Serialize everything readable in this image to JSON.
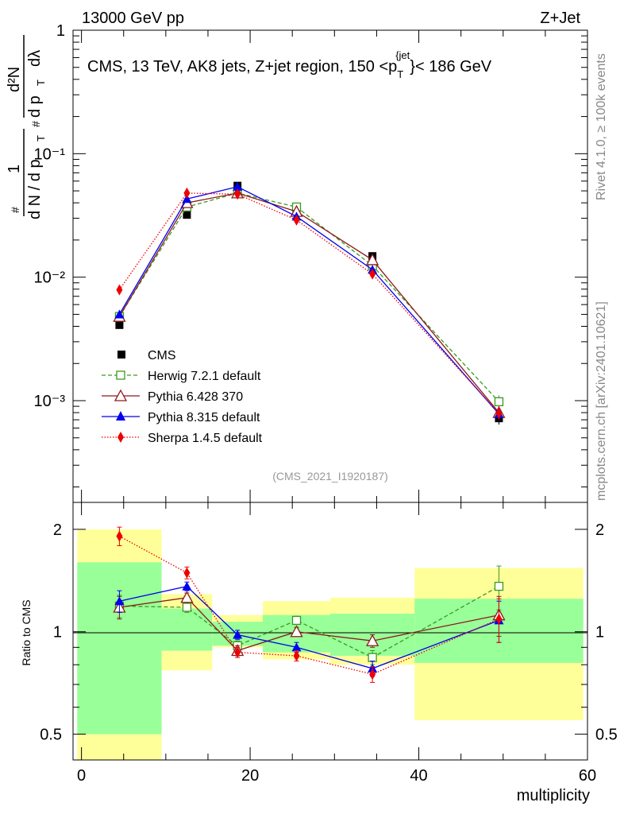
{
  "header": {
    "left": "13000 GeV pp",
    "right": "Z+Jet"
  },
  "side_labels": {
    "rivet": "Rivet 4.1.0, ≥ 100k events",
    "mcplots": "mcplots.cern.ch [arXiv:2401.10621]"
  },
  "analysis_id": "(CMS_2021_I1920187)",
  "colors": {
    "cms": "#000000",
    "herwig": "#3a9a1e",
    "pythia6": "#8b1a1a",
    "pythia8": "#0000ee",
    "sherpa": "#ee0000",
    "band_inner": "#99ff99",
    "band_outer": "#ffff99"
  },
  "chart_data": [
    {
      "type": "line",
      "scale": "log",
      "title": "CMS, 13 TeV, AK8 jets, Z+jet region, 150 <p_T^{jet}< 186 GeV",
      "title_parts": {
        "pre": "CMS, 13 TeV, AK8 jets, Z+jet region, 150 <p",
        "sub": "T",
        "sup": "{jet",
        "post": "}< 186 GeV"
      },
      "ylabel": "1/dN/dp_T  d²N/dp_T dλ",
      "ylabel_parts": {
        "hash": "#",
        "one": "1",
        "dN": "d N / d p",
        "T": "T",
        "d2N": "d²N",
        "dpt": "d p",
        "dlambda": "dλ"
      },
      "ylim": [
        0.00015,
        1.0
      ],
      "y_ticks": [
        {
          "value": 1,
          "label": "1"
        },
        {
          "value": 0.1,
          "label": "10⁻¹"
        },
        {
          "value": 0.01,
          "label": "10⁻²"
        },
        {
          "value": 0.001,
          "label": "10⁻³"
        }
      ],
      "x": [
        4.5,
        12.5,
        18.5,
        25.5,
        34.5,
        49.5
      ],
      "series": [
        {
          "name": "CMS",
          "key": "cms",
          "style": "data",
          "values": [
            0.0041,
            0.032,
            0.055,
            0.034,
            0.0148,
            0.00072
          ]
        },
        {
          "name": "Herwig 7.2.1 default",
          "key": "herwig",
          "style": "dashed",
          "marker": "open-square",
          "values": [
            0.0048,
            0.037,
            0.048,
            0.037,
            0.0124,
            0.00098
          ]
        },
        {
          "name": "Pythia 6.428 370",
          "key": "pythia6",
          "style": "solid",
          "marker": "open-triangle",
          "values": [
            0.0048,
            0.04,
            0.048,
            0.034,
            0.0138,
            0.0008
          ]
        },
        {
          "name": "Pythia 8.315 default",
          "key": "pythia8",
          "style": "solid",
          "marker": "filled-triangle",
          "values": [
            0.005,
            0.043,
            0.054,
            0.031,
            0.0115,
            0.00078
          ]
        },
        {
          "name": "Sherpa 1.4.5 default",
          "key": "sherpa",
          "style": "dotted",
          "marker": "filled-diamond",
          "values": [
            0.0079,
            0.048,
            0.047,
            0.029,
            0.0106,
            0.00079
          ]
        }
      ]
    },
    {
      "type": "line",
      "scale": "log",
      "xlabel": "multiplicity",
      "ylabel": "Ratio to CMS",
      "xlim": [
        -1,
        60
      ],
      "ylim": [
        0.42,
        2.4
      ],
      "x_ticks": [
        0,
        20,
        40,
        60
      ],
      "y_ticks": [
        {
          "value": 0.5,
          "label": "0.5"
        },
        {
          "value": 1,
          "label": "1"
        },
        {
          "value": 2,
          "label": "2"
        }
      ],
      "bands": [
        {
          "x0": -0.5,
          "x1": 9.5,
          "inner": [
            0.5,
            1.6
          ],
          "outer": [
            0.4,
            2.0
          ]
        },
        {
          "x0": 9.5,
          "x1": 15.5,
          "inner": [
            0.88,
            1.17
          ],
          "outer": [
            0.77,
            1.29
          ]
        },
        {
          "x0": 15.5,
          "x1": 21.5,
          "inner": [
            0.91,
            1.07
          ],
          "outer": [
            0.9,
            1.12
          ]
        },
        {
          "x0": 21.5,
          "x1": 29.5,
          "inner": [
            0.87,
            1.12
          ],
          "outer": [
            0.83,
            1.23
          ]
        },
        {
          "x0": 29.5,
          "x1": 39.5,
          "inner": [
            0.85,
            1.13
          ],
          "outer": [
            0.8,
            1.26
          ]
        },
        {
          "x0": 39.5,
          "x1": 59.5,
          "inner": [
            0.81,
            1.25
          ],
          "outer": [
            0.55,
            1.54
          ]
        }
      ],
      "x": [
        4.5,
        12.5,
        18.5,
        25.5,
        34.5,
        49.5
      ],
      "series": [
        {
          "name": "Herwig 7.2.1 default",
          "key": "herwig",
          "style": "dashed",
          "marker": "open-square",
          "values": [
            1.19,
            1.18,
            0.91,
            1.08,
            0.84,
            1.36
          ],
          "err": [
            0.09,
            0.04,
            0.03,
            0.03,
            0.04,
            0.2
          ]
        },
        {
          "name": "Pythia 6.428 370",
          "key": "pythia6",
          "style": "solid",
          "marker": "open-triangle",
          "values": [
            1.18,
            1.26,
            0.88,
            1.0,
            0.94,
            1.12
          ],
          "err": [
            0.09,
            0.04,
            0.03,
            0.03,
            0.04,
            0.15
          ]
        },
        {
          "name": "Pythia 8.315 default",
          "key": "pythia8",
          "style": "solid",
          "marker": "filled-triangle",
          "values": [
            1.23,
            1.36,
            0.98,
            0.9,
            0.78,
            1.08
          ],
          "err": [
            0.09,
            0.04,
            0.03,
            0.03,
            0.04,
            0.15
          ]
        },
        {
          "name": "Sherpa 1.4.5 default",
          "key": "sherpa",
          "style": "dotted",
          "marker": "filled-diamond",
          "values": [
            1.91,
            1.49,
            0.87,
            0.85,
            0.75,
            1.09
          ],
          "err": [
            0.12,
            0.06,
            0.03,
            0.03,
            0.04,
            0.16
          ]
        }
      ]
    }
  ]
}
